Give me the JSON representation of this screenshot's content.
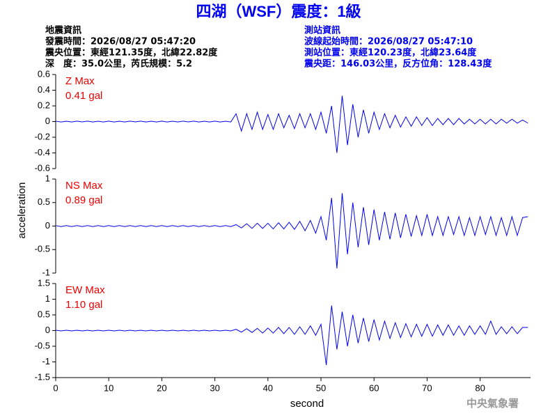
{
  "header": {
    "title": "四湖（WSF）震度：1級",
    "left": [
      "地震資訊",
      "發震時間：2026/08/27 05:47:20",
      "震央位置：東經121.35度，北緯22.82度",
      "深　度：35.0公里，芮氏規模：5.2"
    ],
    "right": [
      "測站資訊",
      "波線起始時間：2026/08/27 05:47:10",
      "測站位置：東經120.23度，北緯23.64度",
      "震央距：146.03公里，反方位角：128.43度"
    ]
  },
  "footer": "中央氣象署",
  "chart_data": [
    {
      "type": "line",
      "title": "Z Max",
      "annotation": "0.41 gal",
      "xlim": [
        0,
        89.5
      ],
      "ylim": [
        -0.6,
        0.6
      ],
      "yticks": [
        -0.6,
        -0.4,
        -0.2,
        0,
        0.2,
        0.4,
        0.6
      ],
      "x": [
        0,
        1,
        2,
        3,
        4,
        5,
        6,
        7,
        8,
        9,
        10,
        11,
        12,
        13,
        14,
        15,
        16,
        17,
        18,
        19,
        20,
        21,
        22,
        23,
        24,
        25,
        26,
        27,
        28,
        29,
        30,
        31,
        32,
        33,
        34,
        35,
        36,
        37,
        38,
        39,
        40,
        41,
        42,
        43,
        44,
        45,
        46,
        47,
        48,
        49,
        50,
        51,
        52,
        53,
        54,
        55,
        56,
        57,
        58,
        59,
        60,
        61,
        62,
        63,
        64,
        65,
        66,
        67,
        68,
        69,
        70,
        71,
        72,
        73,
        74,
        75,
        76,
        77,
        78,
        79,
        80,
        81,
        82,
        83,
        84,
        85,
        86,
        87,
        88,
        89
      ],
      "series": [
        {
          "color": "#0000ee",
          "values": [
            0.005,
            -0.005,
            0.004,
            -0.005,
            0.005,
            -0.004,
            0.005,
            -0.005,
            0.004,
            -0.005,
            0.005,
            -0.005,
            0.004,
            -0.005,
            0.005,
            -0.004,
            0.005,
            -0.005,
            0.004,
            -0.005,
            0.005,
            -0.005,
            0.004,
            -0.005,
            0.005,
            -0.004,
            0.005,
            -0.005,
            0.004,
            -0.005,
            0.005,
            -0.005,
            0.004,
            -0.005,
            0.1,
            -0.12,
            0.1,
            -0.1,
            0.12,
            -0.1,
            0.09,
            -0.1,
            0.1,
            -0.08,
            0.08,
            -0.09,
            0.1,
            -0.08,
            0.1,
            -0.1,
            0.12,
            -0.15,
            0.2,
            -0.4,
            0.33,
            -0.3,
            0.22,
            -0.2,
            0.15,
            -0.15,
            0.12,
            -0.1,
            0.1,
            -0.08,
            0.08,
            -0.07,
            0.06,
            -0.06,
            0.06,
            -0.05,
            0.05,
            -0.05,
            0.04,
            -0.04,
            0.04,
            -0.04,
            0.04,
            -0.03,
            0.03,
            -0.03,
            0.03,
            -0.03,
            0.03,
            -0.03,
            0.03,
            -0.02,
            0.03,
            -0.02,
            0.02,
            -0.02
          ]
        }
      ]
    },
    {
      "type": "line",
      "title": "NS Max",
      "annotation": "0.89 gal",
      "ylabel": "acceleration",
      "xlim": [
        0,
        89.5
      ],
      "ylim": [
        -1,
        1
      ],
      "yticks": [
        -1,
        -0.5,
        0,
        0.5,
        1
      ],
      "x": [
        0,
        1,
        2,
        3,
        4,
        5,
        6,
        7,
        8,
        9,
        10,
        11,
        12,
        13,
        14,
        15,
        16,
        17,
        18,
        19,
        20,
        21,
        22,
        23,
        24,
        25,
        26,
        27,
        28,
        29,
        30,
        31,
        32,
        33,
        34,
        35,
        36,
        37,
        38,
        39,
        40,
        41,
        42,
        43,
        44,
        45,
        46,
        47,
        48,
        49,
        50,
        51,
        52,
        53,
        54,
        55,
        56,
        57,
        58,
        59,
        60,
        61,
        62,
        63,
        64,
        65,
        66,
        67,
        68,
        69,
        70,
        71,
        72,
        73,
        74,
        75,
        76,
        77,
        78,
        79,
        80,
        81,
        82,
        83,
        84,
        85,
        86,
        87,
        88,
        89
      ],
      "series": [
        {
          "color": "#0000ee",
          "values": [
            0.01,
            -0.01,
            0.01,
            -0.01,
            0.01,
            -0.01,
            0.01,
            -0.01,
            0.01,
            -0.01,
            0.01,
            -0.01,
            0.01,
            -0.01,
            0.01,
            -0.01,
            0.01,
            -0.01,
            0.01,
            -0.01,
            0.01,
            -0.01,
            0.01,
            -0.01,
            0.01,
            -0.01,
            0.01,
            -0.01,
            0.01,
            -0.01,
            0.01,
            -0.01,
            0.01,
            -0.01,
            0.03,
            -0.04,
            0.05,
            -0.05,
            0.06,
            -0.05,
            0.06,
            -0.06,
            0.07,
            -0.06,
            0.08,
            -0.07,
            0.1,
            -0.1,
            0.12,
            -0.15,
            0.2,
            -0.3,
            0.6,
            -0.9,
            0.7,
            -0.6,
            0.5,
            -0.45,
            0.4,
            -0.4,
            0.35,
            -0.3,
            0.3,
            -0.28,
            0.28,
            -0.25,
            0.25,
            -0.22,
            0.22,
            -0.2,
            0.25,
            -0.2,
            0.2,
            -0.2,
            0.2,
            -0.18,
            0.2,
            -0.2,
            0.18,
            -0.2,
            0.2,
            -0.18,
            0.2,
            -0.2,
            0.18,
            -0.2,
            0.2,
            -0.2,
            0.18,
            0.2
          ]
        }
      ]
    },
    {
      "type": "line",
      "title": "EW Max",
      "annotation": "1.10 gal",
      "xlabel": "second",
      "xlim": [
        0,
        89.5
      ],
      "ylim": [
        -1.5,
        1.5
      ],
      "yticks": [
        -1.5,
        -1,
        -0.5,
        0,
        0.5,
        1,
        1.5
      ],
      "xticks": [
        0,
        10,
        20,
        30,
        40,
        50,
        60,
        70,
        80
      ],
      "x": [
        0,
        1,
        2,
        3,
        4,
        5,
        6,
        7,
        8,
        9,
        10,
        11,
        12,
        13,
        14,
        15,
        16,
        17,
        18,
        19,
        20,
        21,
        22,
        23,
        24,
        25,
        26,
        27,
        28,
        29,
        30,
        31,
        32,
        33,
        34,
        35,
        36,
        37,
        38,
        39,
        40,
        41,
        42,
        43,
        44,
        45,
        46,
        47,
        48,
        49,
        50,
        51,
        52,
        53,
        54,
        55,
        56,
        57,
        58,
        59,
        60,
        61,
        62,
        63,
        64,
        65,
        66,
        67,
        68,
        69,
        70,
        71,
        72,
        73,
        74,
        75,
        76,
        77,
        78,
        79,
        80,
        81,
        82,
        83,
        84,
        85,
        86,
        87,
        88,
        89
      ],
      "series": [
        {
          "color": "#0000ee",
          "values": [
            0.01,
            -0.01,
            0.01,
            -0.01,
            0.01,
            -0.01,
            0.01,
            -0.01,
            0.01,
            -0.01,
            0.01,
            -0.01,
            0.01,
            -0.01,
            0.01,
            -0.01,
            0.01,
            -0.01,
            0.01,
            -0.01,
            0.01,
            -0.01,
            0.01,
            -0.01,
            0.01,
            -0.01,
            0.01,
            -0.01,
            0.01,
            -0.01,
            0.01,
            -0.01,
            0.01,
            -0.01,
            0.04,
            -0.05,
            0.06,
            -0.06,
            0.07,
            -0.08,
            0.08,
            -0.08,
            0.1,
            -0.1,
            0.1,
            -0.12,
            0.12,
            -0.12,
            0.15,
            -0.15,
            0.2,
            -1.1,
            0.8,
            -0.6,
            0.6,
            -0.5,
            0.5,
            -0.4,
            0.4,
            -0.35,
            0.35,
            -0.3,
            0.3,
            -0.25,
            0.25,
            -0.22,
            0.22,
            -0.2,
            0.2,
            -0.18,
            0.2,
            -0.18,
            0.18,
            -0.15,
            0.18,
            -0.15,
            0.15,
            -0.15,
            0.15,
            -0.12,
            0.15,
            -0.12,
            0.3,
            -0.12,
            0.12,
            -0.1,
            0.12,
            -0.1,
            0.1,
            0.1
          ]
        }
      ]
    }
  ]
}
